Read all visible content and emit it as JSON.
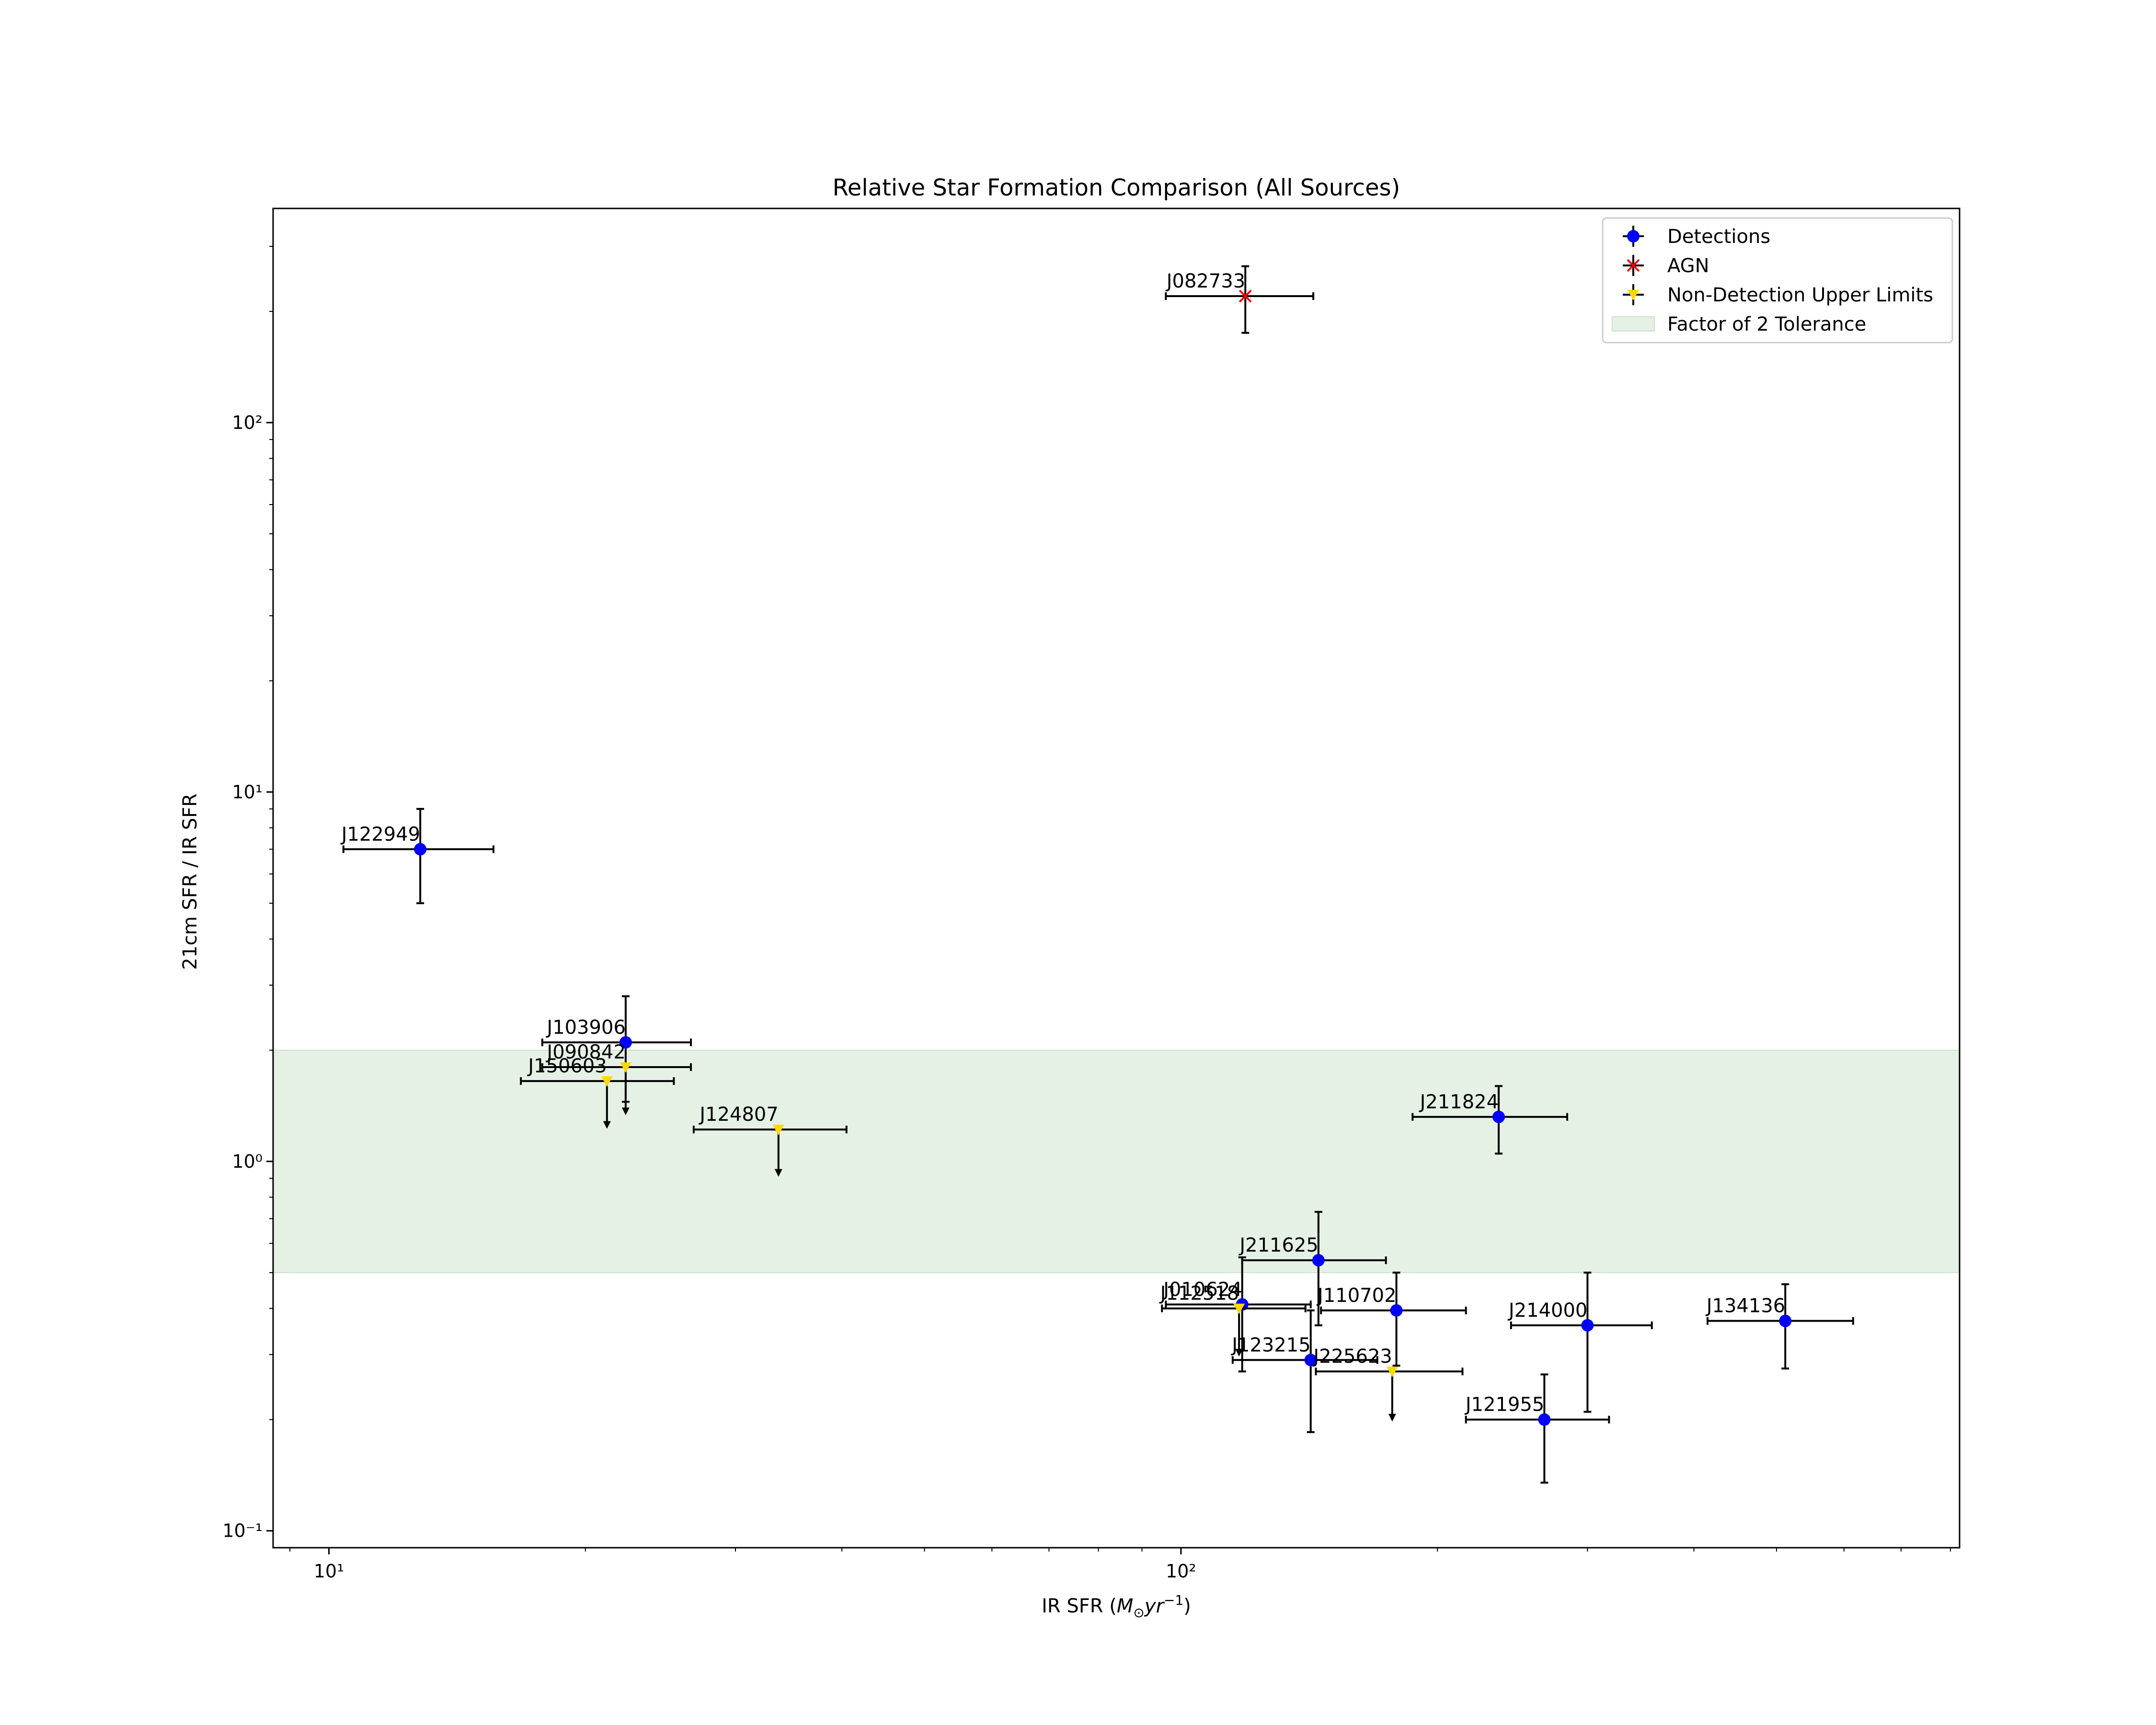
{
  "chart_data": {
    "type": "scatter",
    "title": "Relative Star Formation Comparison (All Sources)",
    "xlabel": "IR SFR (M⊙yr⁻¹)",
    "ylabel": "21cm SFR / IR SFR",
    "xscale": "log",
    "yscale": "log",
    "xlim": [
      8.6,
      820
    ],
    "ylim": [
      0.09,
      380
    ],
    "x_ticks": [
      {
        "value": 10,
        "label": "10¹"
      },
      {
        "value": 100,
        "label": "10²"
      }
    ],
    "y_ticks": [
      {
        "value": 0.1,
        "label": "10⁻¹"
      },
      {
        "value": 1,
        "label": "10⁰"
      },
      {
        "value": 10,
        "label": "10¹"
      },
      {
        "value": 100,
        "label": "10²"
      }
    ],
    "tolerance_band": {
      "name": "Factor of 2 Tolerance",
      "y_min": 0.5,
      "y_max": 2.0,
      "color": "#e5f1e5"
    },
    "legend": {
      "position": "upper-right",
      "entries": [
        {
          "name": "Detections",
          "marker": "circle",
          "color": "#0000ff"
        },
        {
          "name": "AGN",
          "marker": "x",
          "color": "#ff0000"
        },
        {
          "name": "Non-Detection Upper Limits",
          "marker": "triangle-down",
          "color": "#ffd700"
        },
        {
          "name": "Factor of 2 Tolerance",
          "marker": "patch",
          "color": "#e5f1e5"
        }
      ]
    },
    "series": [
      {
        "name": "Detections",
        "color": "#0000ff",
        "marker": "circle",
        "points": [
          {
            "label": "J122949",
            "x": 12.8,
            "y": 7.0,
            "xlo": 10.4,
            "xhi": 15.6,
            "ylo": 5.0,
            "yhi": 9.0
          },
          {
            "label": "J103906",
            "x": 22.3,
            "y": 2.1,
            "xlo": 17.8,
            "xhi": 26.6,
            "ylo": 1.45,
            "yhi": 2.8
          },
          {
            "label": "J211824",
            "x": 236,
            "y": 1.32,
            "xlo": 187,
            "xhi": 284,
            "ylo": 1.05,
            "yhi": 1.6
          },
          {
            "label": "J211625",
            "x": 145,
            "y": 0.54,
            "xlo": 118,
            "xhi": 174,
            "ylo": 0.36,
            "yhi": 0.73
          },
          {
            "label": "J010624",
            "x": 118,
            "y": 0.41,
            "xlo": 96,
            "xhi": 142,
            "ylo": 0.27,
            "yhi": 0.55
          },
          {
            "label": "J110702",
            "x": 179,
            "y": 0.395,
            "xlo": 146,
            "xhi": 216,
            "ylo": 0.28,
            "yhi": 0.5
          },
          {
            "label": "J214000",
            "x": 300,
            "y": 0.36,
            "xlo": 244,
            "xhi": 357,
            "ylo": 0.21,
            "yhi": 0.5
          },
          {
            "label": "J134136",
            "x": 512,
            "y": 0.37,
            "xlo": 415,
            "xhi": 615,
            "ylo": 0.275,
            "yhi": 0.465
          },
          {
            "label": "J123215",
            "x": 142,
            "y": 0.29,
            "xlo": 115,
            "xhi": 170,
            "ylo": 0.185,
            "yhi": 0.395
          },
          {
            "label": "J121955",
            "x": 267,
            "y": 0.2,
            "xlo": 216,
            "xhi": 318,
            "ylo": 0.135,
            "yhi": 0.265
          }
        ]
      },
      {
        "name": "AGN",
        "color": "#ff0000",
        "marker": "x",
        "points": [
          {
            "label": "J082733",
            "x": 119,
            "y": 220,
            "xlo": 96,
            "xhi": 143,
            "ylo": 175,
            "yhi": 265
          }
        ]
      },
      {
        "name": "Non-Detection Upper Limits",
        "color": "#ffd700",
        "marker": "triangle-down",
        "points": [
          {
            "label": "J090842",
            "x": 22.3,
            "y": 1.8,
            "xlo": 17.8,
            "xhi": 26.6,
            "arrow_to": 1.35
          },
          {
            "label": "J150603",
            "x": 21.2,
            "y": 1.65,
            "xlo": 16.8,
            "xhi": 25.4,
            "arrow_to": 1.24
          },
          {
            "label": "J124807",
            "x": 33.7,
            "y": 1.22,
            "xlo": 26.8,
            "xhi": 40.5,
            "arrow_to": 0.92
          },
          {
            "label": "J112518",
            "x": 117,
            "y": 0.4,
            "xlo": 95,
            "xhi": 140,
            "arrow_to": 0.3
          },
          {
            "label": "J225623",
            "x": 177,
            "y": 0.27,
            "xlo": 144,
            "xhi": 214,
            "arrow_to": 0.2
          }
        ]
      }
    ]
  }
}
